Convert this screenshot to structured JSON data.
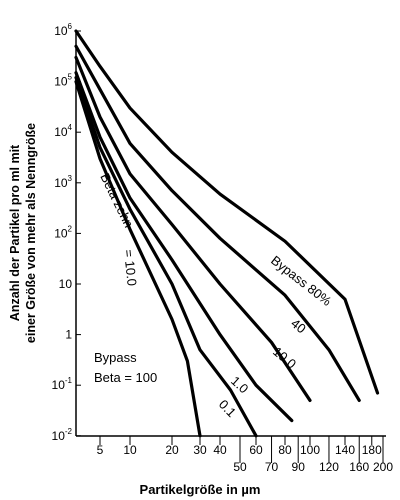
{
  "chart_data": {
    "type": "line",
    "title": "",
    "xlabel": "Partikelgröße in µm",
    "ylabel": [
      "Anzahl der Partikel pro ml mit",
      "einer Größe von mehr als Nenngröße"
    ],
    "y_ticks": [
      {
        "v": 6,
        "base": "10",
        "exp": "6"
      },
      {
        "v": 5,
        "base": "10",
        "exp": "5"
      },
      {
        "v": 4,
        "base": "10",
        "exp": "4"
      },
      {
        "v": 3,
        "base": "10",
        "exp": "3"
      },
      {
        "v": 2,
        "base": "10",
        "exp": "2"
      },
      {
        "v": 1,
        "base": "10",
        "exp": ""
      },
      {
        "v": 0,
        "base": "1",
        "exp": ""
      },
      {
        "v": -1,
        "base": "10",
        "exp": "-1"
      },
      {
        "v": -2,
        "base": "10",
        "exp": "-2"
      }
    ],
    "x_ticks_top": [
      "5",
      "10",
      "20",
      "30",
      "40",
      "60",
      "80",
      "100",
      "140",
      "180"
    ],
    "x_ticks_bottom": [
      "50",
      "70",
      "90",
      "120",
      "160",
      "200"
    ],
    "y_log_exponent_range": [
      -2,
      6
    ],
    "series": [
      {
        "name": "Bypass 80%",
        "points": [
          [
            2,
            1000000
          ],
          [
            5,
            200000
          ],
          [
            10,
            30000
          ],
          [
            20,
            4000
          ],
          [
            40,
            600
          ],
          [
            80,
            70
          ],
          [
            140,
            5
          ],
          [
            190,
            0.07
          ]
        ]
      },
      {
        "name": "40",
        "points": [
          [
            2,
            500000
          ],
          [
            5,
            70000
          ],
          [
            10,
            6000
          ],
          [
            20,
            700
          ],
          [
            40,
            80
          ],
          [
            80,
            6
          ],
          [
            120,
            0.5
          ],
          [
            160,
            0.05
          ]
        ]
      },
      {
        "name": "10.0",
        "points": [
          [
            2,
            300000
          ],
          [
            5,
            20000
          ],
          [
            10,
            1500
          ],
          [
            20,
            150
          ],
          [
            40,
            10
          ],
          [
            70,
            0.7
          ],
          [
            100,
            0.05
          ]
        ]
      },
      {
        "name": "1.0",
        "points": [
          [
            2,
            150000
          ],
          [
            5,
            8000
          ],
          [
            10,
            500
          ],
          [
            20,
            30
          ],
          [
            40,
            1
          ],
          [
            60,
            0.1
          ],
          [
            85,
            0.02
          ]
        ]
      },
      {
        "name": "0.1",
        "points": [
          [
            2,
            120000
          ],
          [
            5,
            5000
          ],
          [
            10,
            300
          ],
          [
            20,
            10
          ],
          [
            30,
            0.5
          ],
          [
            45,
            0.08
          ],
          [
            60,
            0.01
          ]
        ]
      },
      {
        "name": "Beta = 100",
        "points": [
          [
            2,
            100000
          ],
          [
            5,
            3000
          ],
          [
            10,
            120
          ],
          [
            20,
            2
          ],
          [
            25,
            0.3
          ],
          [
            30,
            0.01
          ]
        ]
      }
    ],
    "annotations": [
      {
        "text": "Beta zehn",
        "target": "10.0"
      },
      {
        "text": "= 10.0",
        "target": "10.0"
      },
      {
        "text": "Bypass",
        "target": "Beta = 100"
      },
      {
        "text": "Beta = 100",
        "target": "Beta = 100"
      },
      {
        "text": "Bypass 80%",
        "target": "Bypass 80%"
      },
      {
        "text": "40",
        "target": "40"
      },
      {
        "text": "10.0",
        "target": "10.0"
      },
      {
        "text": "1.0",
        "target": "1.0"
      },
      {
        "text": "0.1",
        "target": "0.1"
      }
    ],
    "grid": false
  }
}
